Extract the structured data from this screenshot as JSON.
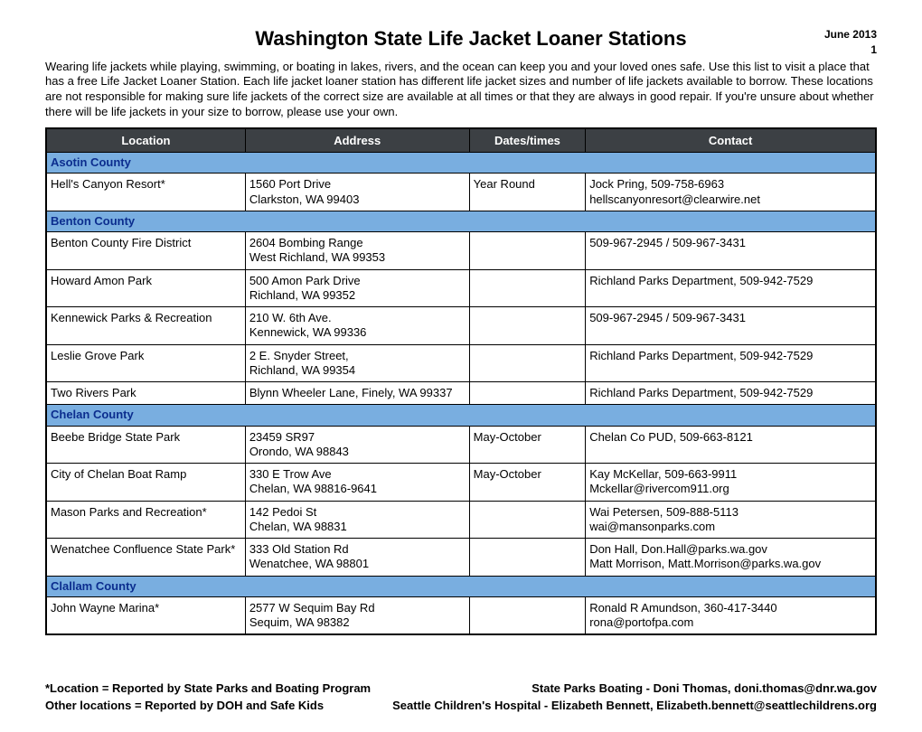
{
  "header": {
    "title": "Washington State Life Jacket Loaner Stations",
    "date": "June  2013",
    "page": "1"
  },
  "intro": "Wearing life jackets while playing, swimming, or boating in lakes, rivers, and the ocean can keep you and your loved ones safe.  Use this list to visit a place that has a free Life Jacket Loaner Station.  Each life jacket loaner station has different life jacket sizes and number of life jackets available to borrow.  These locations are not responsible for making sure life jackets of the correct size are available at all times or that they are always in good repair.  If you're unsure about whether there will be life jackets in your size to borrow, please use your own.",
  "columns": {
    "location": "Location",
    "address": "Address",
    "dates": "Dates/times",
    "contact": "Contact"
  },
  "groups": [
    {
      "county": "Asotin County",
      "rows": [
        {
          "location": "Hell's Canyon Resort*",
          "address": "1560 Port Drive\nClarkston, WA 99403",
          "dates": "Year Round",
          "contact": "Jock Pring, 509-758-6963\nhellscanyonresort@clearwire.net"
        }
      ]
    },
    {
      "county": "Benton County",
      "rows": [
        {
          "location": "Benton County Fire District",
          "address": "2604 Bombing Range\nWest Richland, WA 99353",
          "dates": "",
          "contact": "509-967-2945 / 509-967-3431"
        },
        {
          "location": "Howard Amon Park",
          "address": "500 Amon Park Drive\nRichland, WA 99352",
          "dates": "",
          "contact": "Richland Parks Department, 509-942-7529"
        },
        {
          "location": "Kennewick Parks & Recreation",
          "address": "210 W. 6th Ave.\nKennewick, WA 99336",
          "dates": "",
          "contact": "509-967-2945 / 509-967-3431"
        },
        {
          "location": "Leslie Grove Park",
          "address": "2 E. Snyder Street,\nRichland, WA 99354",
          "dates": "",
          "contact": "Richland Parks Department, 509-942-7529"
        },
        {
          "location": "Two Rivers Park",
          "address": "Blynn Wheeler Lane, Finely, WA 99337",
          "dates": "",
          "contact": "Richland Parks Department, 509-942-7529"
        }
      ]
    },
    {
      "county": "Chelan County",
      "rows": [
        {
          "location": "Beebe Bridge State Park",
          "address": "23459 SR97\nOrondo, WA 98843",
          "dates": "May-October",
          "contact": "Chelan Co PUD, 509-663-8121"
        },
        {
          "location": "City of Chelan Boat Ramp",
          "address": "330 E Trow Ave\nChelan, WA 98816-9641",
          "dates": "May-October",
          "contact": "Kay McKellar, 509-663-9911\nMckellar@rivercom911.org"
        },
        {
          "location": "Mason Parks and Recreation*",
          "address": "142 Pedoi St\nChelan, WA 98831",
          "dates": "",
          "contact": "Wai Petersen, 509-888-5113\nwai@mansonparks.com"
        },
        {
          "location": "Wenatchee Confluence State Park*",
          "address": "333 Old Station Rd\nWenatchee, WA 98801",
          "dates": "",
          "contact": "Don Hall, Don.Hall@parks.wa.gov\nMatt Morrison, Matt.Morrison@parks.wa.gov"
        }
      ]
    },
    {
      "county": "Clallam County",
      "rows": [
        {
          "location": "John Wayne Marina*",
          "address": "2577 W Sequim Bay Rd\nSequim, WA 98382",
          "dates": "",
          "contact": "Ronald R Amundson, 360-417-3440\nrona@portofpa.com"
        }
      ]
    }
  ],
  "footer": {
    "left1": "*Location = Reported by State Parks and Boating Program",
    "left2": "Other locations = Reported by DOH and Safe Kids",
    "right1": "State Parks Boating  - Doni Thomas, doni.thomas@dnr.wa.gov",
    "right2": "Seattle Children's Hospital - Elizabeth Bennett, Elizabeth.bennett@seattlechildrens.org"
  },
  "style": {
    "header_bg": "#3c4044",
    "header_fg": "#ffffff",
    "county_bg": "#79aee0",
    "county_fg": "#0b2d8e",
    "border_color": "#000000",
    "page_bg": "#ffffff"
  }
}
